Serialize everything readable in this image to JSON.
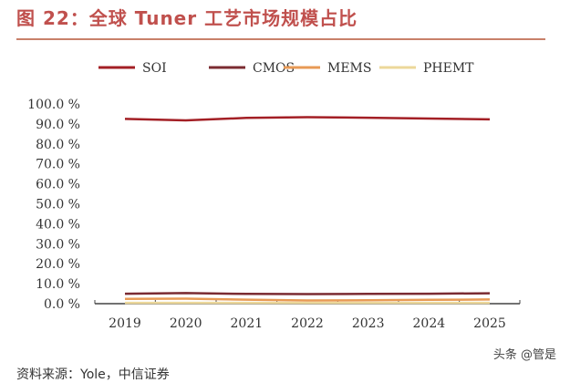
{
  "header": {
    "title": "图 22：全球 Tuner 工艺市场规模占比"
  },
  "footer": {
    "source": "资料来源：Yole，中信证券",
    "watermark": "头条 @管是"
  },
  "chart_data": {
    "type": "line",
    "title": "",
    "xlabel": "",
    "ylabel": "",
    "x": [
      "2019",
      "2020",
      "2021",
      "2022",
      "2023",
      "2024",
      "2025"
    ],
    "ylim": [
      0,
      100
    ],
    "yticks": [
      "0.0 %",
      "10.0 %",
      "20.0 %",
      "30.0 %",
      "40.0 %",
      "50.0 %",
      "60.0 %",
      "70.0 %",
      "80.0 %",
      "90.0 %",
      "100.0 %"
    ],
    "legend_position": "top",
    "grid": false,
    "series": [
      {
        "name": "SOI",
        "color": "#a31f25",
        "values": [
          92.5,
          91.8,
          93.0,
          93.4,
          93.1,
          92.7,
          92.3
        ]
      },
      {
        "name": "CMOS",
        "color": "#7b2b32",
        "values": [
          5.0,
          5.3,
          4.9,
          4.8,
          4.9,
          5.0,
          5.2
        ]
      },
      {
        "name": "MEMS",
        "color": "#e89a55",
        "values": [
          2.4,
          2.5,
          2.0,
          1.6,
          1.7,
          1.9,
          2.1
        ]
      },
      {
        "name": "PHEMT",
        "color": "#ecd89a",
        "values": [
          0.4,
          0.4,
          0.4,
          0.4,
          0.4,
          0.4,
          0.4
        ]
      }
    ]
  }
}
